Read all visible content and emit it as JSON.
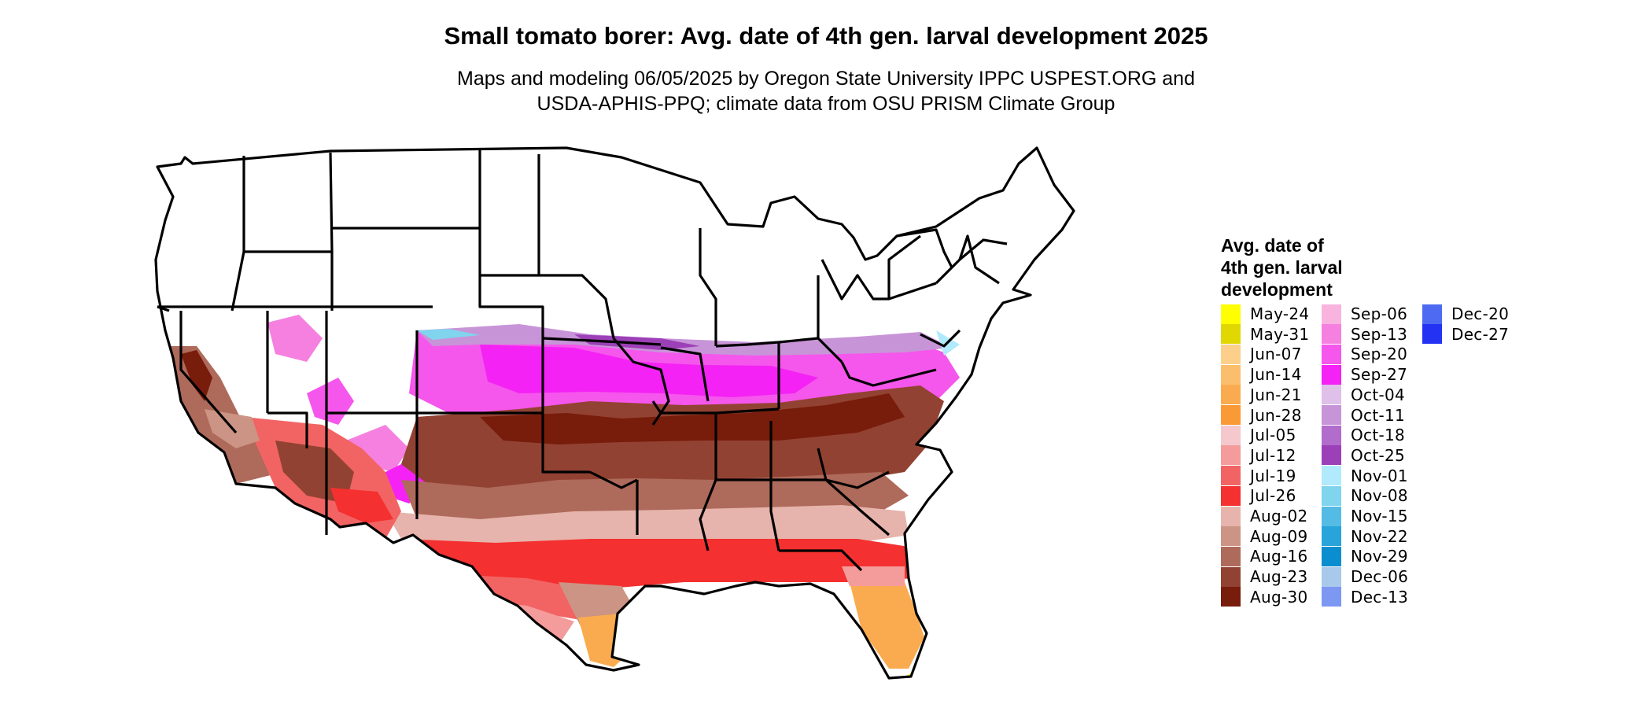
{
  "title": "Small tomato borer: Avg. date of 4th gen. larval development 2025",
  "subtitle": {
    "line1": "Maps and modeling 06/05/2025 by Oregon State University IPPC USPEST.ORG and",
    "line2": "USDA-APHIS-PPQ; climate data from OSU PRISM Climate Group"
  },
  "legend": {
    "title_lines": [
      "Avg. date of",
      "4th gen. larval",
      "development"
    ],
    "items": [
      {
        "label": "May-24",
        "color": "#ffff00"
      },
      {
        "label": "May-31",
        "color": "#e0d800"
      },
      {
        "label": "Jun-07",
        "color": "#fcd08a"
      },
      {
        "label": "Jun-14",
        "color": "#fbbe6c"
      },
      {
        "label": "Jun-21",
        "color": "#fbab4f"
      },
      {
        "label": "Jun-28",
        "color": "#fa9a36"
      },
      {
        "label": "Jul-05",
        "color": "#f4c8cc"
      },
      {
        "label": "Jul-12",
        "color": "#f49c9c"
      },
      {
        "label": "Jul-19",
        "color": "#f26464"
      },
      {
        "label": "Jul-26",
        "color": "#f43030"
      },
      {
        "label": "Aug-02",
        "color": "#e6b4ac"
      },
      {
        "label": "Aug-09",
        "color": "#cc9484"
      },
      {
        "label": "Aug-16",
        "color": "#ae6a5a"
      },
      {
        "label": "Aug-23",
        "color": "#924232"
      },
      {
        "label": "Aug-30",
        "color": "#781c0c"
      },
      {
        "label": "Sep-06",
        "color": "#f8b4de"
      },
      {
        "label": "Sep-13",
        "color": "#f680e0"
      },
      {
        "label": "Sep-20",
        "color": "#f556ec"
      },
      {
        "label": "Sep-27",
        "color": "#f422f4"
      },
      {
        "label": "Oct-04",
        "color": "#dec0e8"
      },
      {
        "label": "Oct-11",
        "color": "#c894d8"
      },
      {
        "label": "Oct-18",
        "color": "#b26ccc"
      },
      {
        "label": "Oct-25",
        "color": "#9c40b8"
      },
      {
        "label": "Nov-01",
        "color": "#b0eafc"
      },
      {
        "label": "Nov-08",
        "color": "#80d4ee"
      },
      {
        "label": "Nov-15",
        "color": "#54bce4"
      },
      {
        "label": "Nov-22",
        "color": "#28a4da"
      },
      {
        "label": "Nov-29",
        "color": "#0a8ed0"
      },
      {
        "label": "Dec-06",
        "color": "#a8c8ec"
      },
      {
        "label": "Dec-13",
        "color": "#7c98f2"
      },
      {
        "label": "Dec-20",
        "color": "#4e6af2"
      },
      {
        "label": "Dec-27",
        "color": "#2432f4"
      }
    ]
  },
  "map": {
    "no_data_color": "#ffffff",
    "border_color": "#000000"
  }
}
